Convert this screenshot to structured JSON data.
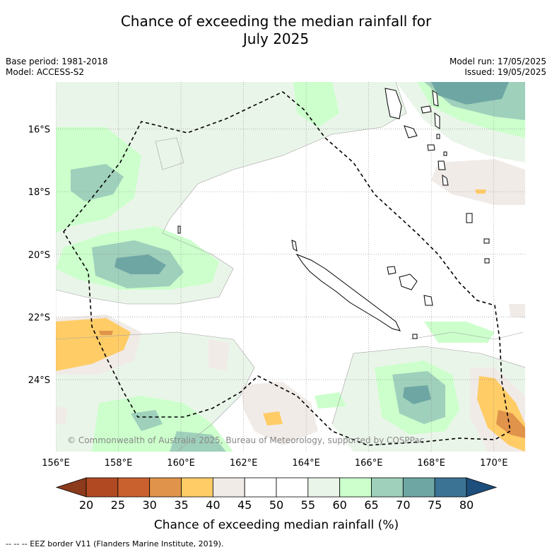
{
  "title_line1": "Chance of exceeding the median rainfall for",
  "title_line2": "July 2025",
  "meta_left": [
    "Base period: 1981-2018",
    "Model: ACCESS-S2"
  ],
  "meta_right": [
    "Model run: 17/05/2025",
    "Issued: 19/05/2025"
  ],
  "copyright": "© Commonwealth of Australia 2025, Bureau of Meteorology, supported by COSPPac",
  "footer": "-- -- -- EEZ border V11 (Flanders Marine Institute, 2019).",
  "map": {
    "lon_labels": [
      "156°E",
      "158°E",
      "160°E",
      "162°E",
      "164°E",
      "166°E",
      "168°E",
      "170°E"
    ],
    "lat_labels": [
      "16°S",
      "18°S",
      "20°S",
      "22°S",
      "24°S"
    ],
    "lon_range": [
      156,
      171
    ],
    "lat_range": [
      -14.5,
      -26.3
    ]
  },
  "legend": {
    "ticks": [
      "20",
      "25",
      "30",
      "35",
      "40",
      "45",
      "50",
      "55",
      "60",
      "65",
      "70",
      "75",
      "80"
    ],
    "colors": [
      "#b14a23",
      "#c9612f",
      "#e0934a",
      "#ffcc66",
      "#f1ebe8",
      "#ffffff",
      "#ffffff",
      "#eaf5e9",
      "#ccffcc",
      "#9fd0bb",
      "#6ea6a4",
      "#3b7394"
    ],
    "low_color": "#8b3a1c",
    "high_color": "#1e4f7c",
    "label": "Chance of exceeding median rainfall (%)"
  }
}
